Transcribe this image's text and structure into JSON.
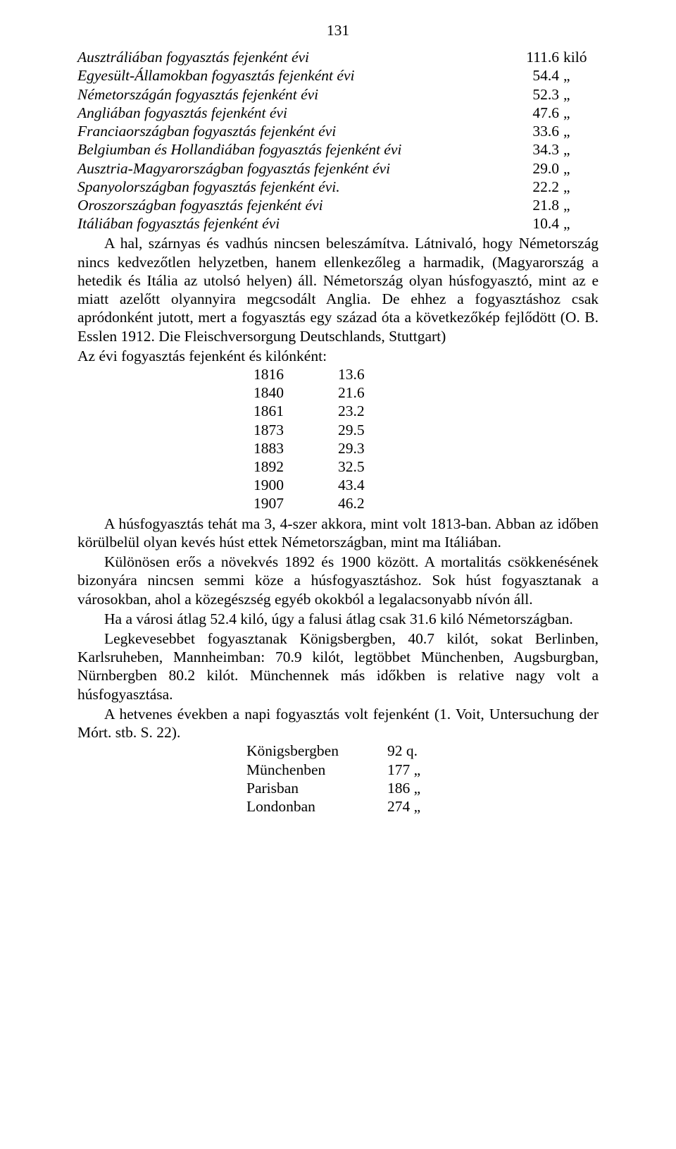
{
  "page_number": "131",
  "consumption_rows": [
    {
      "label": "Ausztráliában fogyasztás fejenként évi",
      "value": "111.6",
      "unit": "kiló"
    },
    {
      "label": "Egyesült-Államokban fogyasztás fejenként évi",
      "value": "54.4",
      "unit": "„"
    },
    {
      "label": "Németországán fogyasztás fejenként évi",
      "value": "52.3",
      "unit": "„"
    },
    {
      "label": "Angliában fogyasztás fejenként évi",
      "value": "47.6",
      "unit": "„"
    },
    {
      "label": "Franciaországban fogyasztás fejenként évi",
      "value": "33.6",
      "unit": "„"
    },
    {
      "label": "Belgiumban és Hollandiában fogyasztás fejenként évi",
      "value": "34.3",
      "unit": "„"
    },
    {
      "label": "Ausztria-Magyarországban fogyasztás fejenként évi",
      "value": "29.0",
      "unit": "„"
    },
    {
      "label": "Spanyolországban fogyasztás fejenként évi.",
      "value": "22.2",
      "unit": "„"
    },
    {
      "label": "Oroszországban fogyasztás fejenként évi",
      "value": "21.8",
      "unit": "„"
    },
    {
      "label": "Itáliában fogyasztás fejenként évi",
      "value": "10.4",
      "unit": "„"
    }
  ],
  "para1": "A hal, szárnyas és vadhús nincsen beleszámítva. Látnivaló, hogy Németország nincs kedvezőtlen helyzetben, hanem ellenkezőleg a harmadik, (Magyarország a hetedik és Itália az utolsó helyen) áll. Németország olyan húsfogyasztó, mint az e miatt azelőtt olyannyira megcsodált Anglia. De ehhez a fogyasztáshoz csak apródonként jutott, mert a fogyasztás egy század óta a következőkép fejlődött (O. B. Esslen 1912. Die Fleischversorgung Deutschlands, Stuttgart)",
  "heading_years": "Az évi fogyasztás fejenként és kilónként:",
  "year_rows": [
    {
      "year": "1816",
      "value": "13.6"
    },
    {
      "year": "1840",
      "value": "21.6"
    },
    {
      "year": "1861",
      "value": "23.2"
    },
    {
      "year": "1873",
      "value": "29.5"
    },
    {
      "year": "1883",
      "value": "29.3"
    },
    {
      "year": "1892",
      "value": "32.5"
    },
    {
      "year": "1900",
      "value": "43.4"
    },
    {
      "year": "1907",
      "value": "46.2"
    }
  ],
  "para2": "A húsfogyasztás tehát ma 3, 4-szer akkora, mint volt 1813-ban. Abban az időben körülbelül olyan kevés húst ettek Németországban, mint ma Itáliában.",
  "para3": "Különösen erős a növekvés 1892 és 1900 között. A mortalitás csökkenésének bizonyára nincsen  semmi köze a húsfogyasztáshoz. Sok húst fogyasztanak a városokban, ahol a közegészség egyéb okokból a legalacsonyabb nívón áll.",
  "para4": "Ha a városi átlag 52.4 kiló, úgy a falusi átlag csak 31.6 kiló Németországban.",
  "para5": "Legkevesebbet fogyasztanak Königsbergben, 40.7 kilót, sokat Berlinben, Karlsruheben, Mannheimban: 70.9 kilót, legtöbbet Münchenben, Augsburgban, Nürnbergben 80.2 kilót. Münchennek más időkben is relative nagy volt a húsfogyasztása.",
  "para6": "A hetvenes években a napi fogyasztás volt fejenként (1. Voit, Untersuchung der Mórt. stb. S. 22).",
  "city_rows": [
    {
      "city": "Königsbergben",
      "value": "92 q."
    },
    {
      "city": "Münchenben",
      "value": "177 „"
    },
    {
      "city": "Parisban",
      "value": "186 „"
    },
    {
      "city": "Londonban",
      "value": "274 „"
    }
  ]
}
